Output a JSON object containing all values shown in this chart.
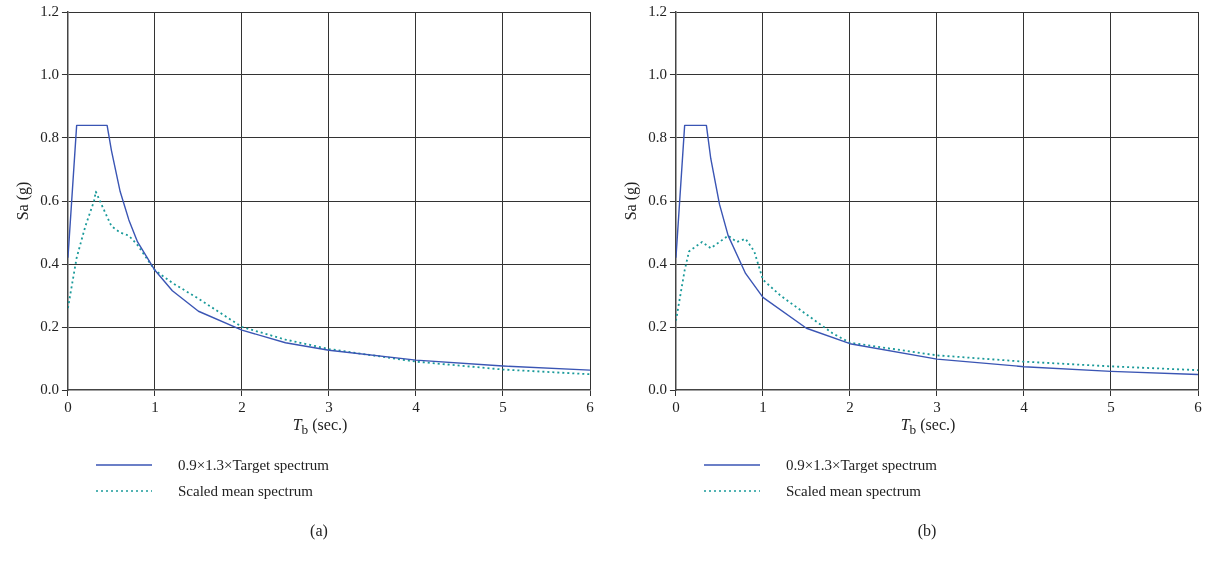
{
  "chart_data": [
    {
      "type": "line",
      "xlabel": "T$_{b}$ (sec.)",
      "ylabel": "Sa (g)",
      "xlim": [
        0,
        6
      ],
      "xticks": [
        0,
        1,
        2,
        3,
        4,
        5,
        6
      ],
      "ylim": [
        0,
        1.2
      ],
      "yticks": [
        {
          "value": 0,
          "label": "0.0"
        },
        {
          "value": 0.2,
          "label": "0.2"
        },
        {
          "value": 0.4,
          "label": "0.4"
        },
        {
          "value": 0.6,
          "label": "0.6"
        },
        {
          "value": 0.8,
          "label": "0.8"
        },
        {
          "value": 1.0,
          "label": "1.0"
        },
        {
          "value": 1.2,
          "label": "1.2"
        }
      ],
      "grid": true,
      "legend": "bottom",
      "annotations": [
        "(a)"
      ],
      "series": [
        {
          "name": "0.9×1.3×Target spectrum",
          "color": "#3a55b4",
          "line_style": "solid",
          "x": [
            0,
            0.1,
            0.45,
            0.5,
            0.6,
            0.7,
            0.8,
            1.0,
            1.2,
            1.5,
            2,
            2.5,
            3,
            4,
            5,
            6
          ],
          "values": [
            0.42,
            0.84,
            0.84,
            0.76,
            0.63,
            0.54,
            0.47,
            0.38,
            0.315,
            0.25,
            0.19,
            0.15,
            0.126,
            0.095,
            0.076,
            0.063
          ]
        },
        {
          "name": "Scaled mean spectrum",
          "color": "#1a9a9a",
          "line_style": "dotted",
          "x": [
            0,
            0.1,
            0.2,
            0.3,
            0.32,
            0.4,
            0.5,
            0.6,
            0.7,
            0.8,
            1.0,
            1.2,
            1.5,
            2,
            2.5,
            3,
            4,
            5,
            6
          ],
          "values": [
            0.26,
            0.42,
            0.52,
            0.6,
            0.63,
            0.58,
            0.52,
            0.5,
            0.49,
            0.46,
            0.38,
            0.34,
            0.29,
            0.2,
            0.16,
            0.13,
            0.09,
            0.065,
            0.05
          ]
        }
      ]
    },
    {
      "type": "line",
      "xlabel": "T$_{b}$ (sec.)",
      "ylabel": "Sa (g)",
      "xlim": [
        0,
        6
      ],
      "xticks": [
        0,
        1,
        2,
        3,
        4,
        5,
        6
      ],
      "ylim": [
        0,
        1.2
      ],
      "yticks": [
        {
          "value": 0,
          "label": "0.0"
        },
        {
          "value": 0.2,
          "label": "0.2"
        },
        {
          "value": 0.4,
          "label": "0.4"
        },
        {
          "value": 0.6,
          "label": "0.6"
        },
        {
          "value": 0.8,
          "label": "0.8"
        },
        {
          "value": 1.0,
          "label": "1.0"
        },
        {
          "value": 1.2,
          "label": "1.2"
        }
      ],
      "grid": true,
      "legend": "bottom",
      "annotations": [
        "(b)"
      ],
      "series": [
        {
          "name": "0.9×1.3×Target spectrum",
          "color": "#3a55b4",
          "line_style": "solid",
          "x": [
            0,
            0.1,
            0.35,
            0.4,
            0.5,
            0.6,
            0.8,
            1.0,
            1.5,
            2,
            3,
            4,
            5,
            6
          ],
          "values": [
            0.42,
            0.84,
            0.84,
            0.735,
            0.59,
            0.49,
            0.37,
            0.294,
            0.196,
            0.147,
            0.098,
            0.074,
            0.059,
            0.049
          ]
        },
        {
          "name": "Scaled mean spectrum",
          "color": "#1a9a9a",
          "line_style": "dotted",
          "x": [
            0,
            0.1,
            0.15,
            0.3,
            0.4,
            0.6,
            0.7,
            0.8,
            0.9,
            1.0,
            1.2,
            1.5,
            1.8,
            2,
            3,
            4,
            5,
            6
          ],
          "values": [
            0.22,
            0.38,
            0.44,
            0.47,
            0.45,
            0.49,
            0.47,
            0.48,
            0.44,
            0.35,
            0.3,
            0.24,
            0.18,
            0.15,
            0.11,
            0.09,
            0.075,
            0.063
          ]
        }
      ]
    }
  ]
}
